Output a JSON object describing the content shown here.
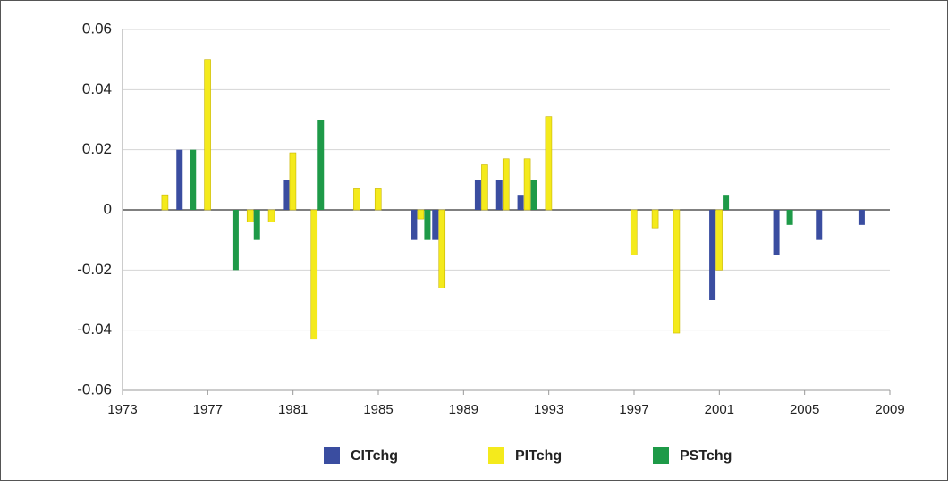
{
  "chart_data": {
    "type": "bar",
    "categories": [
      "1973",
      null,
      null,
      null,
      "1977",
      null,
      null,
      null,
      "1981",
      null,
      null,
      null,
      "1985",
      null,
      null,
      null,
      "1989",
      null,
      null,
      null,
      "1993",
      null,
      null,
      null,
      "1997",
      null,
      null,
      null,
      "2001",
      null,
      null,
      null,
      "2005",
      null,
      null,
      null,
      "2009"
    ],
    "series": [
      {
        "name": "CITchg",
        "color": "#3a4da0",
        "values": [
          null,
          null,
          null,
          0.02,
          null,
          null,
          null,
          null,
          0.01,
          null,
          null,
          null,
          null,
          null,
          -0.01,
          -0.01,
          null,
          0.01,
          0.01,
          0.005,
          null,
          null,
          null,
          null,
          null,
          null,
          null,
          null,
          -0.03,
          null,
          null,
          -0.015,
          null,
          -0.01,
          null,
          -0.005,
          null
        ]
      },
      {
        "name": "PITchg",
        "color": "#f4ea1c",
        "values": [
          null,
          null,
          0.005,
          null,
          0.05,
          null,
          -0.004,
          -0.004,
          0.019,
          -0.043,
          null,
          0.007,
          0.007,
          null,
          -0.003,
          -0.026,
          null,
          0.015,
          0.017,
          0.017,
          0.031,
          null,
          null,
          null,
          -0.015,
          -0.006,
          -0.041,
          null,
          -0.02,
          null,
          null,
          null,
          null,
          null,
          null,
          null,
          null
        ]
      },
      {
        "name": "PSTchg",
        "color": "#1e9a48",
        "values": [
          null,
          null,
          null,
          0.02,
          null,
          -0.02,
          -0.01,
          null,
          null,
          0.03,
          null,
          null,
          null,
          null,
          -0.01,
          null,
          null,
          null,
          null,
          0.01,
          null,
          null,
          null,
          null,
          null,
          null,
          null,
          null,
          0.005,
          null,
          null,
          -0.005,
          null,
          null,
          null,
          null,
          null
        ]
      }
    ],
    "ylim": [
      -0.06,
      0.06
    ],
    "yticks": [
      -0.06,
      -0.04,
      -0.02,
      0,
      0.02,
      0.04,
      0.06
    ],
    "grid": true,
    "legend": "bottom"
  }
}
